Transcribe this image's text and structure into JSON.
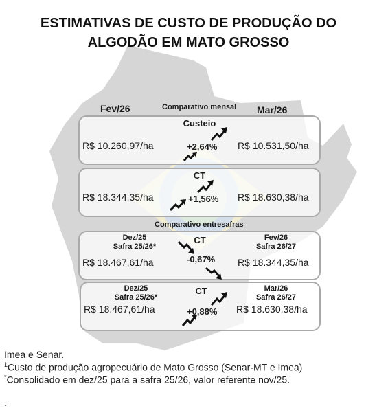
{
  "title_line1": "ESTIMATIVAS DE CUSTO DE PRODUÇÃO DO",
  "title_line2": "ALGODÃO EM MATO GROSSO",
  "monthly": {
    "left_period": "Fev/26",
    "section_label": "Comparativo mensal",
    "right_period": "Mar/26",
    "custeio": {
      "title": "Custeio",
      "left_value": "R$ 10.260,97/ha",
      "change": "+2,64%",
      "right_value": "R$ 10.531,50/ha"
    },
    "ct": {
      "title": "CT",
      "left_value": "R$ 18.344,35/ha",
      "change": "+1,56%",
      "right_value": "R$ 18.630,38/ha"
    }
  },
  "interharvest": {
    "section_label": "Comparativo entresafras",
    "card1": {
      "title": "CT",
      "left_period": "Dez/25",
      "left_harvest": "Safra 25/26*",
      "left_value": "R$ 18.467,61/ha",
      "change": "-0,67%",
      "right_period": "Fev/26",
      "right_harvest": "Safra 26/27",
      "right_value": "R$ 18.344,35/ha"
    },
    "card2": {
      "title": "CT",
      "left_period": "Dez/25",
      "left_harvest": "Safra 25/26*",
      "left_value": "R$ 18.467,61/ha",
      "change": "+0,88%",
      "right_period": "Mar/26",
      "right_harvest": "Safra 26/27",
      "right_value": "R$ 18.630,38/ha"
    }
  },
  "footer": {
    "line1": "Imea e Senar.",
    "line2_sup": "1",
    "line2": "Custo de produção agropecuário de Mato Grosso (Senar-MT e Imea)",
    "line3_sup": "*",
    "line3": "Consolidado em dez/25 para a safra 25/26, valor referente nov/25.",
    "line4": "."
  },
  "colors": {
    "text": "#1a1a1a",
    "card_border": "#a9a9a9",
    "map_gray": "#d6d6d6",
    "flag_green": "#d7ead9",
    "flag_yellow": "#f1eccf",
    "flag_blue": "#d4deea"
  },
  "icons": {
    "up": "trend-up-icon",
    "down": "trend-down-icon"
  }
}
